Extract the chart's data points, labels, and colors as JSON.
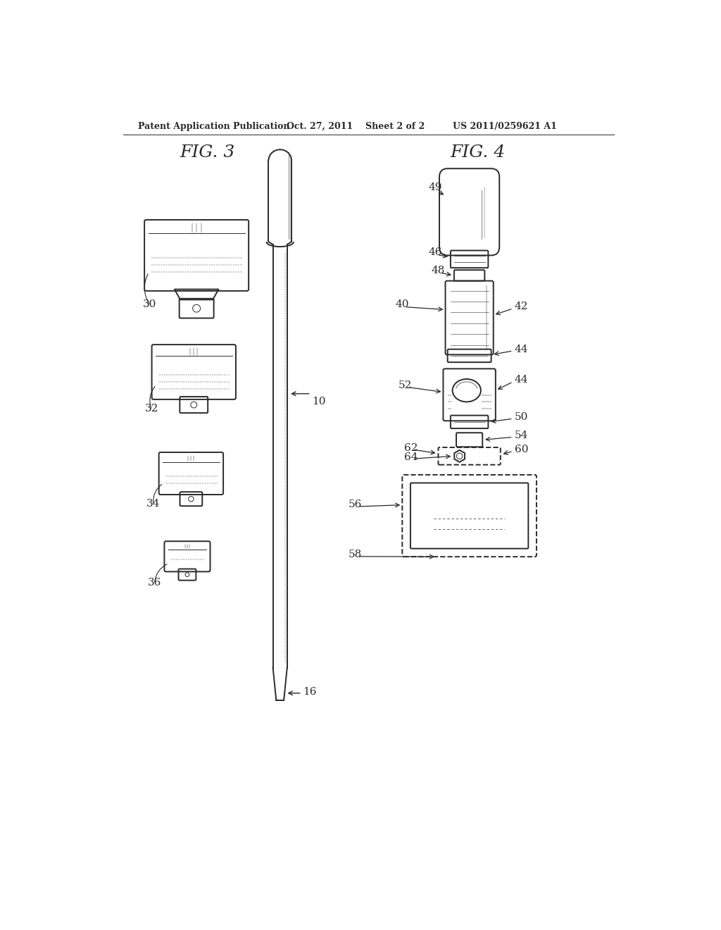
{
  "background_color": "#ffffff",
  "header_text": "Patent Application Publication",
  "header_date": "Oct. 27, 2011",
  "header_sheet": "Sheet 2 of 2",
  "header_patent": "US 2011/0259621 A1",
  "fig3_label": "FIG. 3",
  "fig4_label": "FIG. 4",
  "line_color": "#2a2a2a",
  "line_width": 1.4,
  "thin_line": 0.7
}
